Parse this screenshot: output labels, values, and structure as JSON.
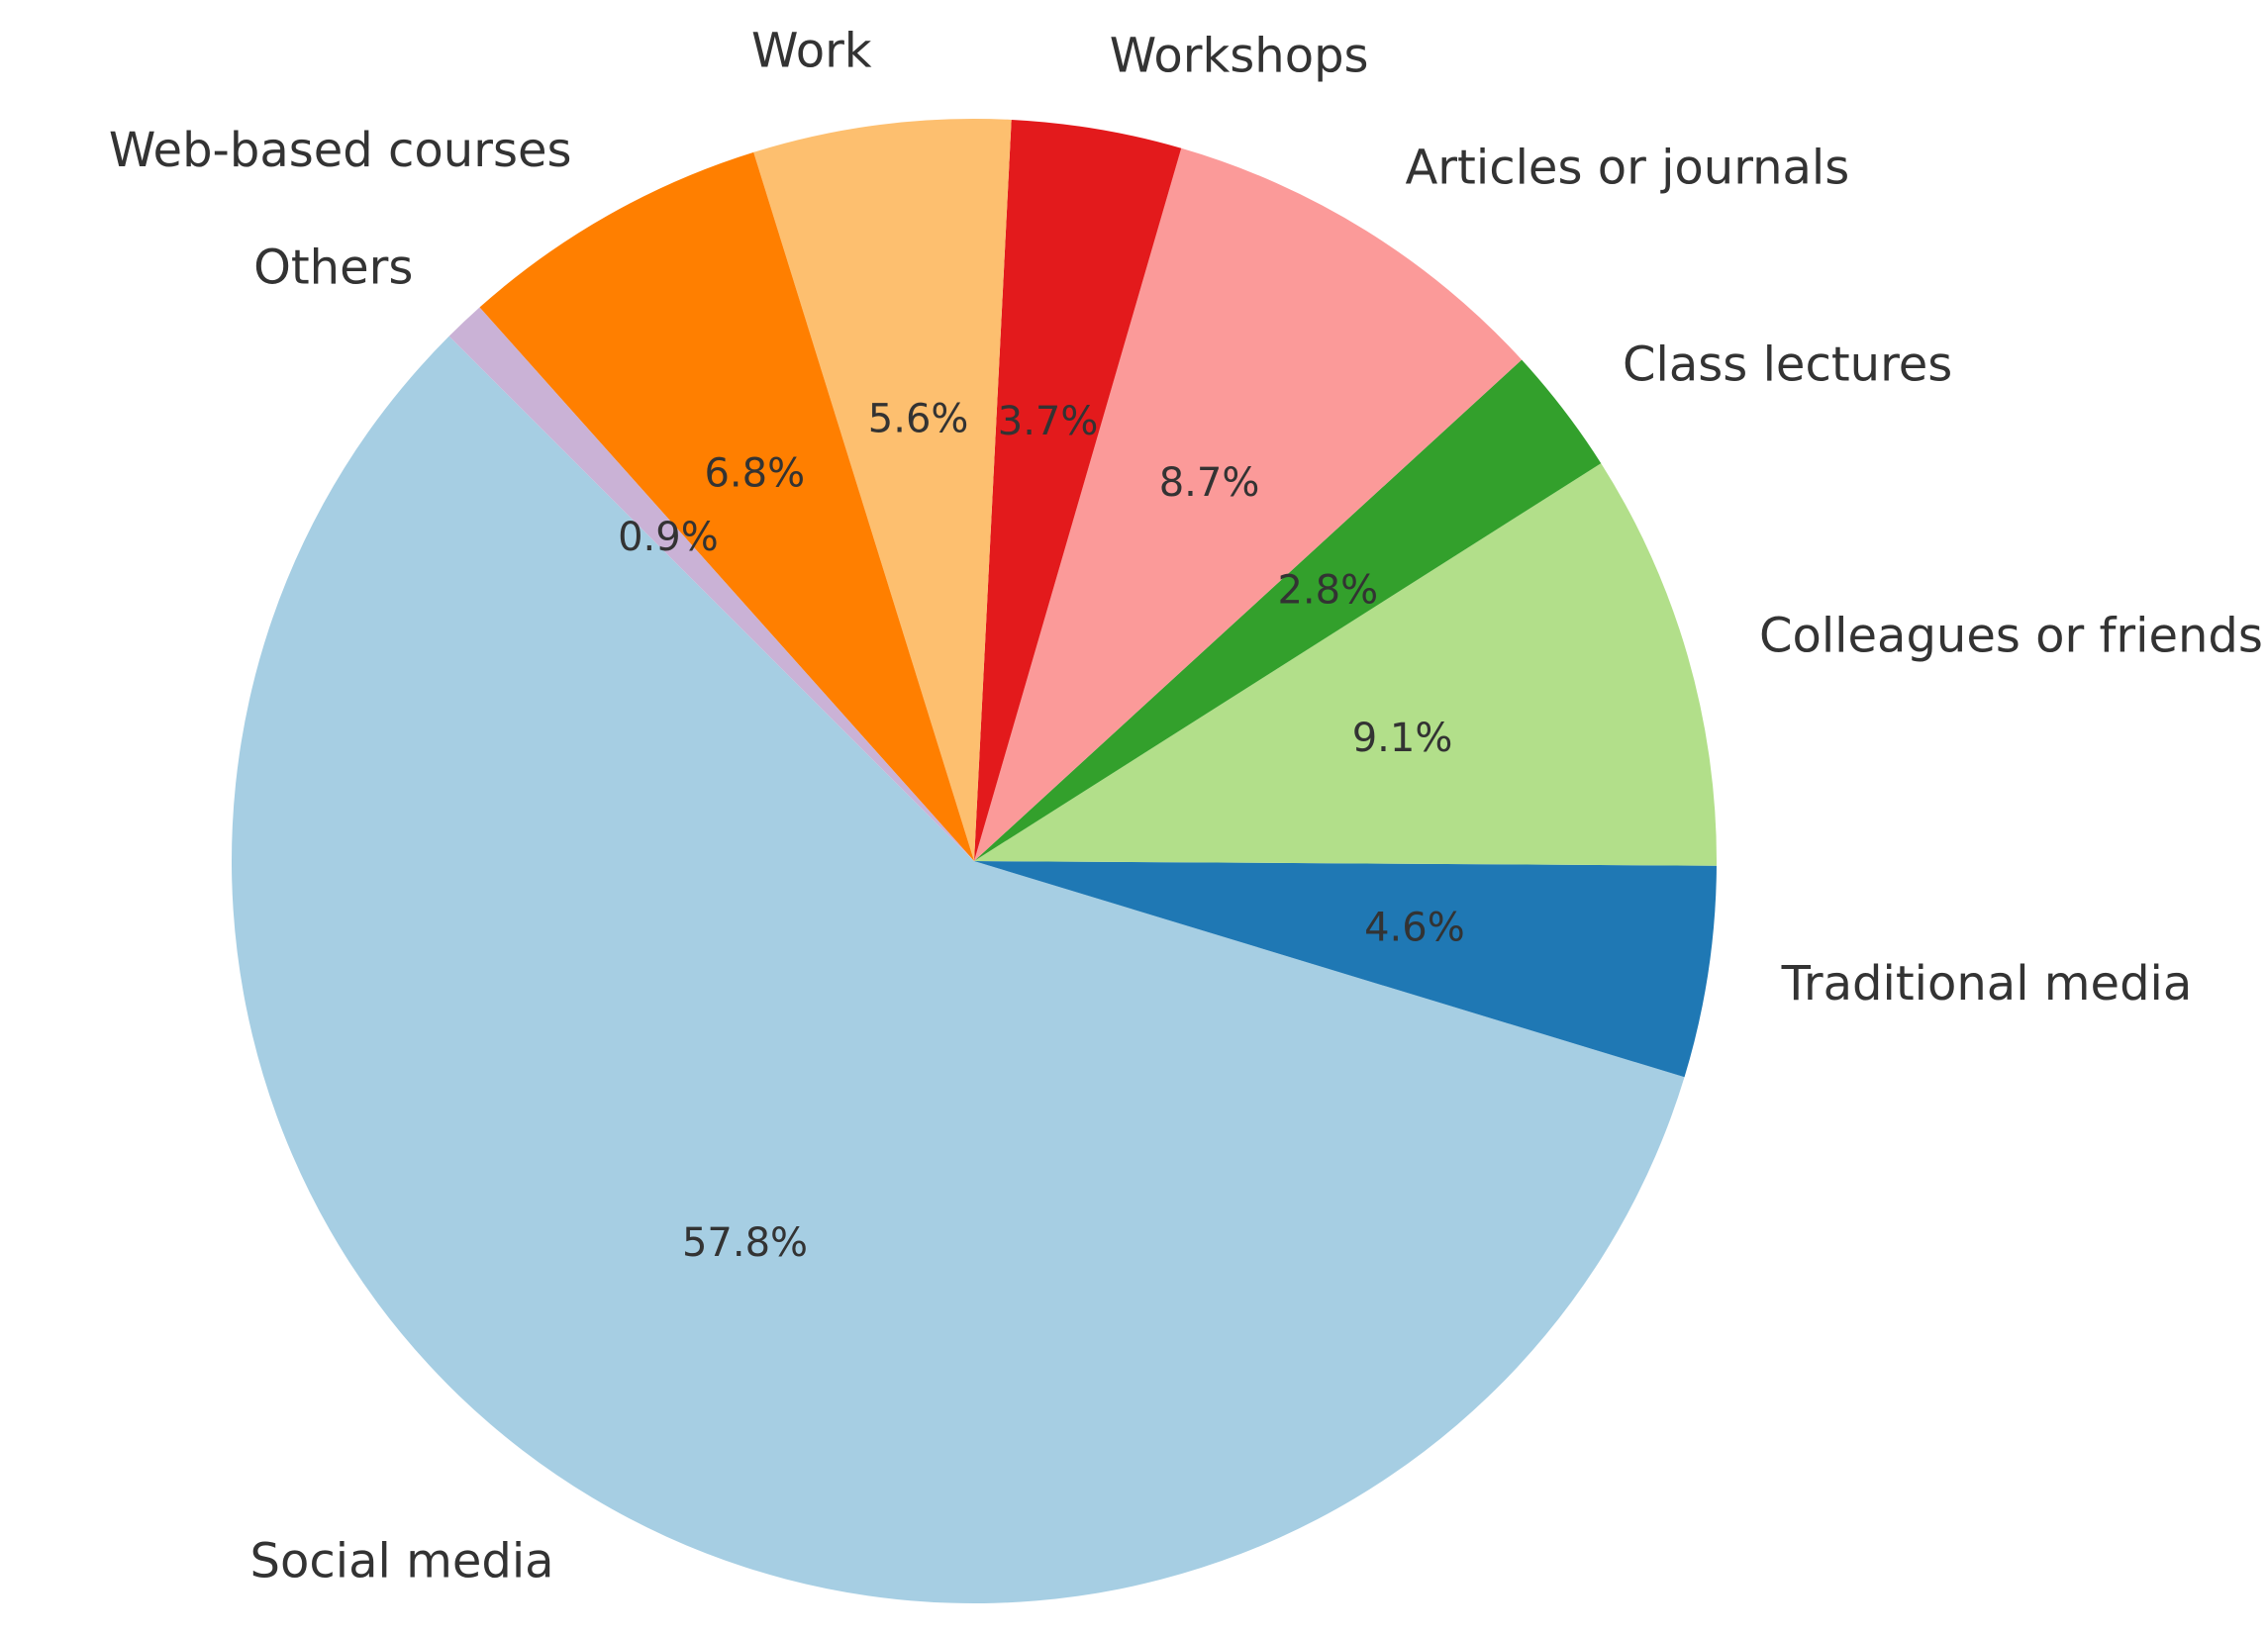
{
  "chart_data": {
    "type": "pie",
    "title": "",
    "start_angle_deg": 135,
    "direction": "counterclockwise",
    "slices": [
      {
        "label": "Social media",
        "value": 57.8,
        "pct_label": "57.8%",
        "color": "#a6cee3"
      },
      {
        "label": "Traditional media",
        "value": 4.6,
        "pct_label": "4.6%",
        "color": "#1f78b4"
      },
      {
        "label": "Colleagues or friends",
        "value": 9.1,
        "pct_label": "9.1%",
        "color": "#b2df8a"
      },
      {
        "label": "Class lectures",
        "value": 2.8,
        "pct_label": "2.8%",
        "color": "#33a02c"
      },
      {
        "label": "Articles or journals",
        "value": 8.7,
        "pct_label": "8.7%",
        "color": "#fb9a99"
      },
      {
        "label": "Workshops",
        "value": 3.7,
        "pct_label": "3.7%",
        "color": "#e31a1c"
      },
      {
        "label": "Work",
        "value": 5.6,
        "pct_label": "5.6%",
        "color": "#fdbf6f"
      },
      {
        "label": "Web-based courses",
        "value": 6.8,
        "pct_label": "6.8%",
        "color": "#ff7f00"
      },
      {
        "label": "Others",
        "value": 0.9,
        "pct_label": "0.9%",
        "color": "#cab2d6"
      }
    ]
  }
}
